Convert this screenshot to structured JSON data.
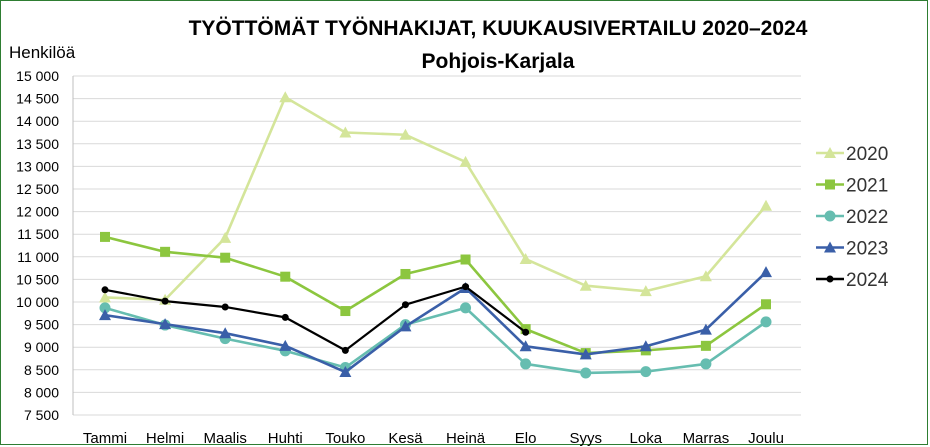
{
  "chart_data": {
    "type": "line",
    "title": "TYÖTTÖMÄT TYÖNHAKIJAT, KUUKAUSIVERTAILU 2020–2024",
    "subtitle": "Pohjois-Karjala",
    "ylabel": "Henkilöä",
    "xlabel": "",
    "ylim": [
      7500,
      15000
    ],
    "ytick_step": 500,
    "ytick_labels": [
      "7 500",
      "8 000",
      "8 500",
      "9 000",
      "9 500",
      "10 000",
      "10 500",
      "11 000",
      "11 500",
      "12 000",
      "12 500",
      "13 000",
      "13 500",
      "14 000",
      "14 500",
      "15 000"
    ],
    "categories": [
      "Tammi",
      "Helmi",
      "Maalis",
      "Huhti",
      "Touko",
      "Kesä",
      "Heinä",
      "Elo",
      "Syys",
      "Loka",
      "Marras",
      "Joulu"
    ],
    "grid": true,
    "legend_position": "right",
    "series": [
      {
        "name": "2020",
        "color": "#d4e59a",
        "marker": "triangle",
        "values": [
          10100,
          10050,
          11420,
          14530,
          13750,
          13700,
          13100,
          10950,
          10360,
          10240,
          10570,
          12130
        ]
      },
      {
        "name": "2021",
        "color": "#8cc63f",
        "marker": "square",
        "values": [
          11440,
          11110,
          10980,
          10560,
          9800,
          10620,
          10940,
          9400,
          8870,
          8930,
          9030,
          9950
        ]
      },
      {
        "name": "2022",
        "color": "#66bdb0",
        "marker": "circle",
        "values": [
          9870,
          9490,
          9190,
          8920,
          8550,
          9500,
          9870,
          8630,
          8430,
          8460,
          8630,
          9560
        ]
      },
      {
        "name": "2023",
        "color": "#3a5fa8",
        "marker": "triangle",
        "values": [
          9710,
          9510,
          9310,
          9030,
          8450,
          9460,
          10310,
          9020,
          8840,
          9020,
          9390,
          10660
        ]
      },
      {
        "name": "2024",
        "color": "#000000",
        "marker": "dot",
        "values": [
          10270,
          10020,
          9890,
          9660,
          8930,
          9940,
          10340,
          9330,
          null,
          null,
          null,
          null
        ]
      }
    ]
  }
}
